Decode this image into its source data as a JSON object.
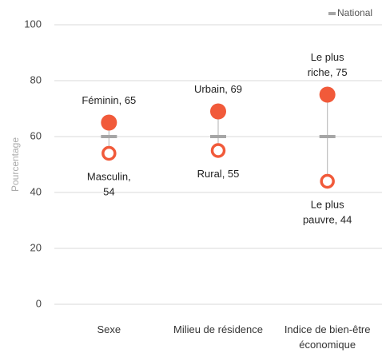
{
  "chart_data": {
    "type": "dot",
    "y_label": "Pourcentage",
    "categories": [
      "Sexe",
      "Milieu de résidence",
      "Indice de bien-être économique"
    ],
    "series": [
      {
        "color": "#f15a3a",
        "marker": "filled",
        "values": [
          65,
          69,
          75
        ],
        "value_labels": [
          [
            "Féminin, 65"
          ],
          [
            "Urbain, 69"
          ],
          [
            "Le plus",
            "riche, 75"
          ]
        ]
      },
      {
        "color": "#f15a3a",
        "marker": "hollow",
        "values": [
          54,
          55,
          44
        ],
        "value_labels": [
          [
            "Masculin,",
            "54"
          ],
          [
            "Rural, 55"
          ],
          [
            "Le plus",
            "pauvre, 44"
          ]
        ]
      },
      {
        "name": "National",
        "color": "#a6a6a6",
        "marker": "dash",
        "values": [
          60,
          60,
          60
        ]
      }
    ],
    "ylim": [
      0,
      100
    ],
    "yticks": [
      0,
      20,
      40,
      60,
      80,
      100
    ],
    "grid": true,
    "legend": "top-right"
  }
}
